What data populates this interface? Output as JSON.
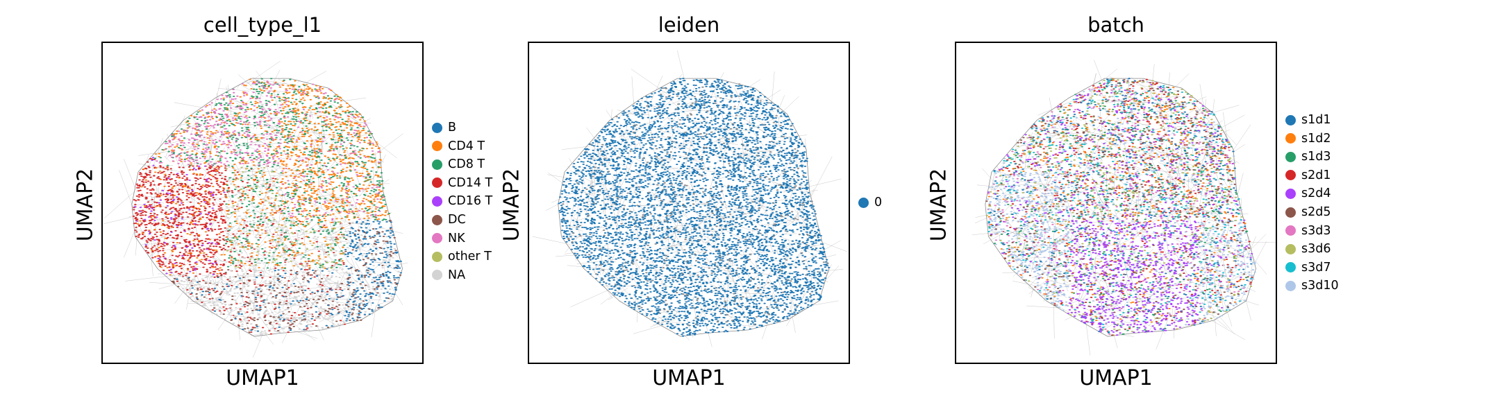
{
  "chart_data": [
    {
      "type": "scatter",
      "title": "cell_type_l1",
      "xlabel": "UMAP1",
      "ylabel": "UMAP2",
      "legend_position": "right",
      "categories": [
        "B",
        "CD4 T",
        "CD8 T",
        "CD14 T",
        "CD16 T",
        "DC",
        "NK",
        "other T",
        "NA"
      ],
      "colors": [
        "#1f77b4",
        "#ff7f0e",
        "#279e68",
        "#d62728",
        "#aa40fc",
        "#8c564b",
        "#e377c2",
        "#b5bd61",
        "#d3d3d3"
      ]
    },
    {
      "type": "scatter",
      "title": "leiden",
      "xlabel": "UMAP1",
      "ylabel": "UMAP2",
      "legend_position": "right",
      "categories": [
        "0"
      ],
      "colors": [
        "#1f77b4"
      ]
    },
    {
      "type": "scatter",
      "title": "batch",
      "xlabel": "UMAP1",
      "ylabel": "UMAP2",
      "legend_position": "right",
      "categories": [
        "s1d1",
        "s1d2",
        "s1d3",
        "s2d1",
        "s2d4",
        "s2d5",
        "s3d3",
        "s3d6",
        "s3d7",
        "s3d10"
      ],
      "colors": [
        "#1f77b4",
        "#ff7f0e",
        "#279e68",
        "#d62728",
        "#aa40fc",
        "#8c564b",
        "#e377c2",
        "#b5bd61",
        "#17becf",
        "#aec7e8"
      ]
    }
  ]
}
